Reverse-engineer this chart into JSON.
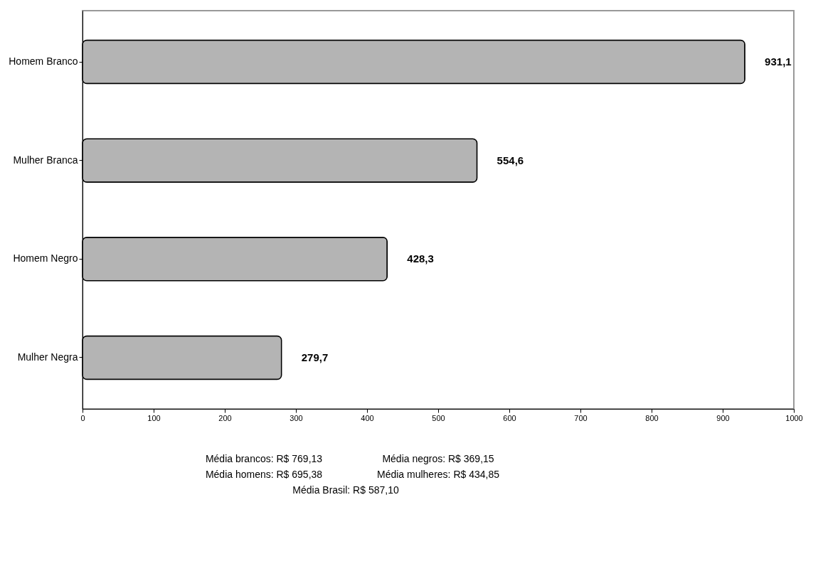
{
  "chart_data": {
    "type": "bar",
    "orientation": "horizontal",
    "categories": [
      "Homem Branco",
      "Mulher Branca",
      "Homem Negro",
      "Mulher Negra"
    ],
    "values": [
      931.1,
      554.6,
      428.3,
      279.7
    ],
    "value_labels": [
      "931,1",
      "554,6",
      "428,3",
      "279,7"
    ],
    "color": "#b4b4b4",
    "xlim": [
      0,
      1000
    ],
    "xticks": [
      0,
      100,
      200,
      300,
      400,
      500,
      600,
      700,
      800,
      900,
      1000
    ],
    "annotations": [
      "Média brancos: R$ 769,13",
      "Média negros:  R$ 369,15",
      "Média homens: R$  695,38",
      "Média mulheres: R$ 434,85",
      "Média Brasil: R$ 587,10"
    ]
  }
}
